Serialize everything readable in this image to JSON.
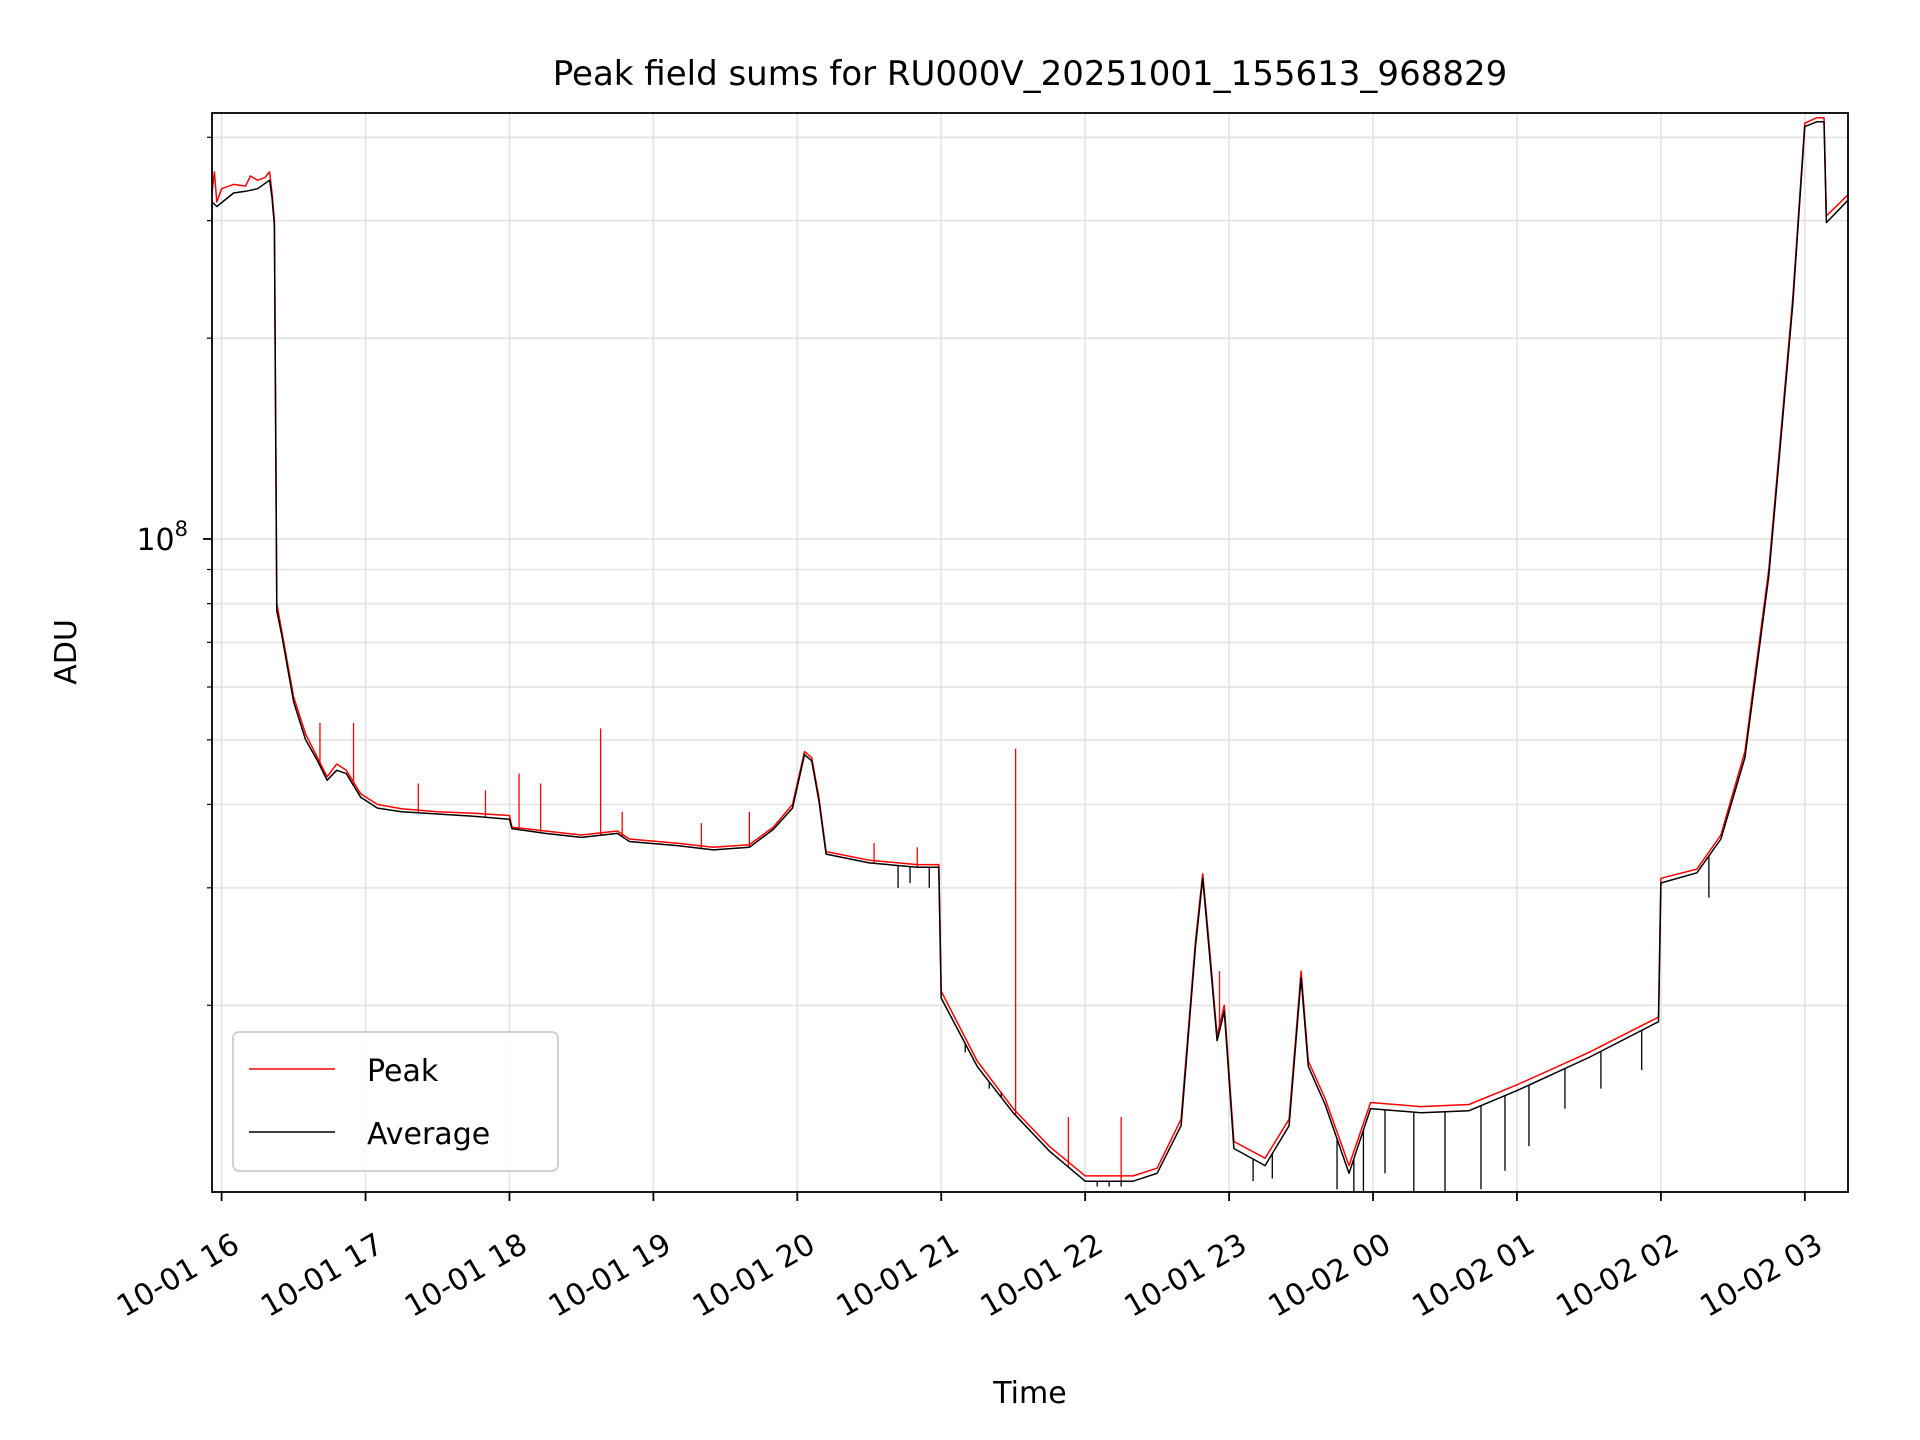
{
  "chart_data": {
    "type": "line",
    "title": "Peak field sums for RU000V_20251001_155613_968829",
    "xlabel": "Time",
    "ylabel": "ADU",
    "yscale": "log",
    "ylim": [
      10500000,
      435000000
    ],
    "xlim": [
      "2025-10-01 15:56",
      "2025-10-02 03:18"
    ],
    "y_tick_labels": [
      {
        "value": 100000000,
        "base": "10",
        "exp": "8"
      }
    ],
    "x_ticks": [
      {
        "label": "10-01 16",
        "t": "2025-10-01 16:00"
      },
      {
        "label": "10-01 17",
        "t": "2025-10-01 17:00"
      },
      {
        "label": "10-01 18",
        "t": "2025-10-01 18:00"
      },
      {
        "label": "10-01 19",
        "t": "2025-10-01 19:00"
      },
      {
        "label": "10-01 20",
        "t": "2025-10-01 20:00"
      },
      {
        "label": "10-01 21",
        "t": "2025-10-01 21:00"
      },
      {
        "label": "10-01 22",
        "t": "2025-10-01 22:00"
      },
      {
        "label": "10-01 23",
        "t": "2025-10-01 23:00"
      },
      {
        "label": "10-02 00",
        "t": "2025-10-02 00:00"
      },
      {
        "label": "10-02 01",
        "t": "2025-10-02 01:00"
      },
      {
        "label": "10-02 02",
        "t": "2025-10-02 02:00"
      },
      {
        "label": "10-02 03",
        "t": "2025-10-02 03:00"
      }
    ],
    "grid": true,
    "legend_position": "lower-left",
    "series": [
      {
        "name": "Peak",
        "color": "#ff0000",
        "points": [
          [
            "2025-10-01 15:56",
            330000000
          ],
          [
            "2025-10-01 15:57",
            355000000
          ],
          [
            "2025-10-01 15:58",
            320000000
          ],
          [
            "2025-10-01 16:00",
            335000000
          ],
          [
            "2025-10-01 16:05",
            340000000
          ],
          [
            "2025-10-01 16:10",
            338000000
          ],
          [
            "2025-10-01 16:12",
            350000000
          ],
          [
            "2025-10-01 16:15",
            345000000
          ],
          [
            "2025-10-01 16:18",
            348000000
          ],
          [
            "2025-10-01 16:20",
            355000000
          ],
          [
            "2025-10-01 16:21",
            330000000
          ],
          [
            "2025-10-01 16:22",
            300000000
          ],
          [
            "2025-10-01 16:23",
            80000000
          ],
          [
            "2025-10-01 16:25",
            73000000
          ],
          [
            "2025-10-01 16:30",
            58000000
          ],
          [
            "2025-10-01 16:35",
            51000000
          ],
          [
            "2025-10-01 16:40",
            47000000
          ],
          [
            "2025-10-01 16:44",
            44000000
          ],
          [
            "2025-10-01 16:48",
            46000000
          ],
          [
            "2025-10-01 16:52",
            45000000
          ],
          [
            "2025-10-01 16:58",
            41500000
          ],
          [
            "2025-10-01 17:05",
            40000000
          ],
          [
            "2025-10-01 17:15",
            39400000
          ],
          [
            "2025-10-01 17:30",
            39000000
          ],
          [
            "2025-10-01 17:45",
            38800000
          ],
          [
            "2025-10-01 18:00",
            38500000
          ],
          [
            "2025-10-01 18:01",
            37000000
          ],
          [
            "2025-10-01 18:15",
            36500000
          ],
          [
            "2025-10-01 18:30",
            36000000
          ],
          [
            "2025-10-01 18:45",
            36500000
          ],
          [
            "2025-10-01 18:50",
            35500000
          ],
          [
            "2025-10-01 19:10",
            35000000
          ],
          [
            "2025-10-01 19:25",
            34500000
          ],
          [
            "2025-10-01 19:40",
            34800000
          ],
          [
            "2025-10-01 19:50",
            37000000
          ],
          [
            "2025-10-01 19:58",
            40000000
          ],
          [
            "2025-10-01 20:03",
            48000000
          ],
          [
            "2025-10-01 20:06",
            47000000
          ],
          [
            "2025-10-01 20:09",
            41000000
          ],
          [
            "2025-10-01 20:12",
            34000000
          ],
          [
            "2025-10-01 20:30",
            33000000
          ],
          [
            "2025-10-01 20:50",
            32500000
          ],
          [
            "2025-10-01 20:59",
            32500000
          ],
          [
            "2025-10-01 21:00",
            21000000
          ],
          [
            "2025-10-01 21:15",
            16500000
          ],
          [
            "2025-10-01 21:30",
            14000000
          ],
          [
            "2025-10-01 21:45",
            12300000
          ],
          [
            "2025-10-01 22:00",
            11100000
          ],
          [
            "2025-10-01 22:20",
            11100000
          ],
          [
            "2025-10-01 22:30",
            11400000
          ],
          [
            "2025-10-01 22:40",
            13500000
          ],
          [
            "2025-10-01 22:46",
            25000000
          ],
          [
            "2025-10-01 22:49",
            31500000
          ],
          [
            "2025-10-01 22:52",
            24000000
          ],
          [
            "2025-10-01 22:55",
            18000000
          ],
          [
            "2025-10-01 22:58",
            20000000
          ],
          [
            "2025-10-01 23:02",
            12500000
          ],
          [
            "2025-10-01 23:15",
            11800000
          ],
          [
            "2025-10-01 23:25",
            13500000
          ],
          [
            "2025-10-01 23:30",
            22500000
          ],
          [
            "2025-10-01 23:33",
            16500000
          ],
          [
            "2025-10-01 23:40",
            14500000
          ],
          [
            "2025-10-01 23:50",
            11500000
          ],
          [
            "2025-10-01 23:59",
            14300000
          ],
          [
            "2025-10-02 00:20",
            14100000
          ],
          [
            "2025-10-02 00:40",
            14200000
          ],
          [
            "2025-10-02 01:00",
            15200000
          ],
          [
            "2025-10-02 01:30",
            17000000
          ],
          [
            "2025-10-02 01:59",
            19200000
          ],
          [
            "2025-10-02 02:00",
            31000000
          ],
          [
            "2025-10-02 02:15",
            32000000
          ],
          [
            "2025-10-02 02:25",
            36000000
          ],
          [
            "2025-10-02 02:35",
            48000000
          ],
          [
            "2025-10-02 02:45",
            90000000
          ],
          [
            "2025-10-02 02:55",
            230000000
          ],
          [
            "2025-10-02 03:00",
            420000000
          ],
          [
            "2025-10-02 03:05",
            428000000
          ],
          [
            "2025-10-02 03:08",
            428000000
          ],
          [
            "2025-10-02 03:09",
            305000000
          ],
          [
            "2025-10-02 03:18",
            328000000
          ]
        ]
      },
      {
        "name": "Average",
        "color": "#000000",
        "points": [
          [
            "2025-10-01 15:56",
            320000000
          ],
          [
            "2025-10-01 15:58",
            315000000
          ],
          [
            "2025-10-01 16:05",
            330000000
          ],
          [
            "2025-10-01 16:10",
            332000000
          ],
          [
            "2025-10-01 16:15",
            335000000
          ],
          [
            "2025-10-01 16:20",
            345000000
          ],
          [
            "2025-10-01 16:21",
            325000000
          ],
          [
            "2025-10-01 16:22",
            295000000
          ],
          [
            "2025-10-01 16:23",
            78000000
          ],
          [
            "2025-10-01 16:25",
            72000000
          ],
          [
            "2025-10-01 16:30",
            57000000
          ],
          [
            "2025-10-01 16:35",
            50000000
          ],
          [
            "2025-10-01 16:40",
            46500000
          ],
          [
            "2025-10-01 16:44",
            43500000
          ],
          [
            "2025-10-01 16:48",
            45000000
          ],
          [
            "2025-10-01 16:52",
            44500000
          ],
          [
            "2025-10-01 16:58",
            41000000
          ],
          [
            "2025-10-01 17:05",
            39500000
          ],
          [
            "2025-10-01 17:15",
            39000000
          ],
          [
            "2025-10-01 17:30",
            38700000
          ],
          [
            "2025-10-01 17:45",
            38400000
          ],
          [
            "2025-10-01 18:00",
            38000000
          ],
          [
            "2025-10-01 18:01",
            36800000
          ],
          [
            "2025-10-01 18:15",
            36200000
          ],
          [
            "2025-10-01 18:30",
            35700000
          ],
          [
            "2025-10-01 18:45",
            36200000
          ],
          [
            "2025-10-01 18:50",
            35200000
          ],
          [
            "2025-10-01 19:10",
            34700000
          ],
          [
            "2025-10-01 19:25",
            34200000
          ],
          [
            "2025-10-01 19:40",
            34500000
          ],
          [
            "2025-10-01 19:50",
            36700000
          ],
          [
            "2025-10-01 19:58",
            39500000
          ],
          [
            "2025-10-01 20:03",
            47500000
          ],
          [
            "2025-10-01 20:06",
            46500000
          ],
          [
            "2025-10-01 20:09",
            40500000
          ],
          [
            "2025-10-01 20:12",
            33700000
          ],
          [
            "2025-10-01 20:30",
            32700000
          ],
          [
            "2025-10-01 20:50",
            32200000
          ],
          [
            "2025-10-01 20:59",
            32200000
          ],
          [
            "2025-10-01 21:00",
            20500000
          ],
          [
            "2025-10-01 21:15",
            16200000
          ],
          [
            "2025-10-01 21:30",
            13800000
          ],
          [
            "2025-10-01 21:45",
            12100000
          ],
          [
            "2025-10-01 22:00",
            10900000
          ],
          [
            "2025-10-01 22:20",
            10900000
          ],
          [
            "2025-10-01 22:30",
            11200000
          ],
          [
            "2025-10-01 22:40",
            13200000
          ],
          [
            "2025-10-01 22:46",
            24500000
          ],
          [
            "2025-10-01 22:49",
            31000000
          ],
          [
            "2025-10-01 22:52",
            23500000
          ],
          [
            "2025-10-01 22:55",
            17700000
          ],
          [
            "2025-10-01 22:58",
            19600000
          ],
          [
            "2025-10-01 23:02",
            12200000
          ],
          [
            "2025-10-01 23:15",
            11500000
          ],
          [
            "2025-10-01 23:25",
            13200000
          ],
          [
            "2025-10-01 23:30",
            22000000
          ],
          [
            "2025-10-01 23:33",
            16200000
          ],
          [
            "2025-10-01 23:40",
            14200000
          ],
          [
            "2025-10-01 23:50",
            11200000
          ],
          [
            "2025-10-01 23:59",
            14000000
          ],
          [
            "2025-10-02 00:20",
            13800000
          ],
          [
            "2025-10-02 00:40",
            13900000
          ],
          [
            "2025-10-02 01:00",
            14900000
          ],
          [
            "2025-10-02 01:30",
            16700000
          ],
          [
            "2025-10-02 01:59",
            18900000
          ],
          [
            "2025-10-02 02:00",
            30500000
          ],
          [
            "2025-10-02 02:15",
            31600000
          ],
          [
            "2025-10-02 02:25",
            35500000
          ],
          [
            "2025-10-02 02:35",
            47000000
          ],
          [
            "2025-10-02 02:45",
            88000000
          ],
          [
            "2025-10-02 02:55",
            225000000
          ],
          [
            "2025-10-02 03:00",
            415000000
          ],
          [
            "2025-10-02 03:05",
            422000000
          ],
          [
            "2025-10-02 03:08",
            422000000
          ],
          [
            "2025-10-02 03:09",
            298000000
          ],
          [
            "2025-10-02 03:18",
            322000000
          ]
        ],
        "dips": [
          [
            "2025-10-01 20:42",
            30000000
          ],
          [
            "2025-10-01 20:47",
            30500000
          ],
          [
            "2025-10-01 20:55",
            30000000
          ],
          [
            "2025-10-01 21:10",
            17000000
          ],
          [
            "2025-10-01 21:20",
            15000000
          ],
          [
            "2025-10-01 21:25",
            14800000
          ],
          [
            "2025-10-01 22:05",
            10700000
          ],
          [
            "2025-10-01 22:10",
            10700000
          ],
          [
            "2025-10-01 22:15",
            10700000
          ],
          [
            "2025-10-01 23:10",
            10900000
          ],
          [
            "2025-10-01 23:18",
            11000000
          ],
          [
            "2025-10-01 23:45",
            10600000
          ],
          [
            "2025-10-01 23:52",
            10500000
          ],
          [
            "2025-10-01 23:56",
            10500000
          ],
          [
            "2025-10-02 00:05",
            11200000
          ],
          [
            "2025-10-02 00:17",
            10500000
          ],
          [
            "2025-10-02 00:30",
            10500000
          ],
          [
            "2025-10-02 00:45",
            10600000
          ],
          [
            "2025-10-02 00:55",
            11300000
          ],
          [
            "2025-10-02 01:05",
            12300000
          ],
          [
            "2025-10-02 01:20",
            14000000
          ],
          [
            "2025-10-02 01:35",
            15000000
          ],
          [
            "2025-10-02 01:52",
            16000000
          ],
          [
            "2025-10-02 02:20",
            29000000
          ]
        ]
      }
    ],
    "peak_spikes": [
      [
        "2025-10-01 16:41",
        53000000
      ],
      [
        "2025-10-01 16:55",
        53000000
      ],
      [
        "2025-10-01 17:22",
        43000000
      ],
      [
        "2025-10-01 17:50",
        42000000
      ],
      [
        "2025-10-01 18:04",
        44500000
      ],
      [
        "2025-10-01 18:13",
        43000000
      ],
      [
        "2025-10-01 18:38",
        52000000
      ],
      [
        "2025-10-01 18:47",
        39000000
      ],
      [
        "2025-10-01 19:20",
        37500000
      ],
      [
        "2025-10-01 19:40",
        39000000
      ],
      [
        "2025-10-01 20:32",
        35000000
      ],
      [
        "2025-10-01 20:50",
        34500000
      ],
      [
        "2025-10-01 21:31",
        48500000
      ],
      [
        "2025-10-01 21:53",
        13600000
      ],
      [
        "2025-10-01 22:15",
        13600000
      ],
      [
        "2025-10-01 22:56",
        22500000
      ]
    ]
  }
}
